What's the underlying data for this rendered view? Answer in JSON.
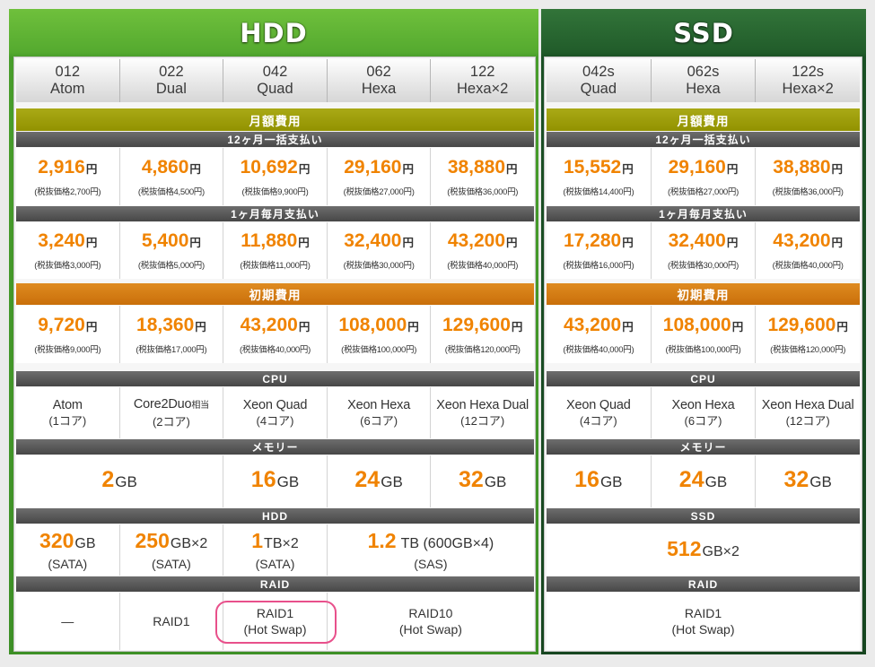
{
  "currency": "円",
  "colors": {
    "price_orange": "#f08300",
    "monthly_fee_bar": "#9d9d0b",
    "initial_fee_bar": "#d47d14",
    "section_bar": "#5a5a5a",
    "hdd_panel": "#4a9d2b",
    "ssd_panel": "#1c4f24",
    "highlight": "#e8508b"
  },
  "hdd": {
    "title": "HDD",
    "columns": [
      {
        "code": "012",
        "name": "Atom"
      },
      {
        "code": "022",
        "name": "Dual"
      },
      {
        "code": "042",
        "name": "Quad"
      },
      {
        "code": "062",
        "name": "Hexa"
      },
      {
        "code": "122",
        "name": "Hexa×2"
      }
    ],
    "labels": {
      "monthly_fee": "月額費用",
      "annual_payment": "12ヶ月一括支払い",
      "monthly_payment": "1ヶ月毎月支払い",
      "initial_fee": "初期費用",
      "cpu": "CPU",
      "memory": "メモリー",
      "storage": "HDD",
      "raid": "RAID"
    },
    "annual_prices": [
      {
        "price": "2,916",
        "tax_excluded": "(税抜価格2,700円)"
      },
      {
        "price": "4,860",
        "tax_excluded": "(税抜価格4,500円)"
      },
      {
        "price": "10,692",
        "tax_excluded": "(税抜価格9,900円)"
      },
      {
        "price": "29,160",
        "tax_excluded": "(税抜価格27,000円)"
      },
      {
        "price": "38,880",
        "tax_excluded": "(税抜価格36,000円)"
      }
    ],
    "monthly_prices": [
      {
        "price": "3,240",
        "tax_excluded": "(税抜価格3,000円)"
      },
      {
        "price": "5,400",
        "tax_excluded": "(税抜価格5,000円)"
      },
      {
        "price": "11,880",
        "tax_excluded": "(税抜価格11,000円)"
      },
      {
        "price": "32,400",
        "tax_excluded": "(税抜価格30,000円)"
      },
      {
        "price": "43,200",
        "tax_excluded": "(税抜価格40,000円)"
      }
    ],
    "initial_fees": [
      {
        "price": "9,720",
        "tax_excluded": "(税抜価格9,000円)"
      },
      {
        "price": "18,360",
        "tax_excluded": "(税抜価格17,000円)"
      },
      {
        "price": "43,200",
        "tax_excluded": "(税抜価格40,000円)"
      },
      {
        "price": "108,000",
        "tax_excluded": "(税抜価格100,000円)"
      },
      {
        "price": "129,600",
        "tax_excluded": "(税抜価格120,000円)"
      }
    ],
    "cpu": [
      {
        "name": "Atom",
        "cores": "(1コア)"
      },
      {
        "name": "Core2Duo",
        "suffix": "相当",
        "cores": "(2コア)"
      },
      {
        "name": "Xeon Quad",
        "cores": "(4コア)"
      },
      {
        "name": "Xeon Hexa",
        "cores": "(6コア)"
      },
      {
        "name": "Xeon Hexa Dual",
        "cores": "(12コア)"
      }
    ],
    "memory": [
      {
        "value": "2",
        "unit": "GB"
      },
      {
        "value": "16",
        "unit": "GB"
      },
      {
        "value": "24",
        "unit": "GB"
      },
      {
        "value": "32",
        "unit": "GB"
      }
    ],
    "storage": [
      {
        "value": "320",
        "unit": "GB",
        "interface": "(SATA)"
      },
      {
        "value": "250",
        "unit": "GB×2",
        "interface": "(SATA)"
      },
      {
        "value": "1",
        "unit": "TB×2",
        "interface": "(SATA)"
      },
      {
        "value": "1.2",
        "unit": "TB (600GB×4)",
        "interface": "(SAS)"
      }
    ],
    "raid": [
      {
        "line1": "—"
      },
      {
        "line1": "RAID1"
      },
      {
        "line1": "RAID1",
        "line2": "(Hot Swap)"
      },
      {
        "line1": "RAID10",
        "line2": "(Hot Swap)"
      }
    ]
  },
  "ssd": {
    "title": "SSD",
    "columns": [
      {
        "code": "042s",
        "name": "Quad"
      },
      {
        "code": "062s",
        "name": "Hexa"
      },
      {
        "code": "122s",
        "name": "Hexa×2"
      }
    ],
    "labels": {
      "monthly_fee": "月額費用",
      "annual_payment": "12ヶ月一括支払い",
      "monthly_payment": "1ヶ月毎月支払い",
      "initial_fee": "初期費用",
      "cpu": "CPU",
      "memory": "メモリー",
      "storage": "SSD",
      "raid": "RAID"
    },
    "annual_prices": [
      {
        "price": "15,552",
        "tax_excluded": "(税抜価格14,400円)"
      },
      {
        "price": "29,160",
        "tax_excluded": "(税抜価格27,000円)"
      },
      {
        "price": "38,880",
        "tax_excluded": "(税抜価格36,000円)"
      }
    ],
    "monthly_prices": [
      {
        "price": "17,280",
        "tax_excluded": "(税抜価格16,000円)"
      },
      {
        "price": "32,400",
        "tax_excluded": "(税抜価格30,000円)"
      },
      {
        "price": "43,200",
        "tax_excluded": "(税抜価格40,000円)"
      }
    ],
    "initial_fees": [
      {
        "price": "43,200",
        "tax_excluded": "(税抜価格40,000円)"
      },
      {
        "price": "108,000",
        "tax_excluded": "(税抜価格100,000円)"
      },
      {
        "price": "129,600",
        "tax_excluded": "(税抜価格120,000円)"
      }
    ],
    "cpu": [
      {
        "name": "Xeon Quad",
        "cores": "(4コア)"
      },
      {
        "name": "Xeon Hexa",
        "cores": "(6コア)"
      },
      {
        "name": "Xeon Hexa Dual",
        "cores": "(12コア)"
      }
    ],
    "memory": [
      {
        "value": "16",
        "unit": "GB"
      },
      {
        "value": "24",
        "unit": "GB"
      },
      {
        "value": "32",
        "unit": "GB"
      }
    ],
    "storage": {
      "value": "512",
      "unit": "GB×2"
    },
    "raid": {
      "line1": "RAID1",
      "line2": "(Hot Swap)"
    }
  }
}
